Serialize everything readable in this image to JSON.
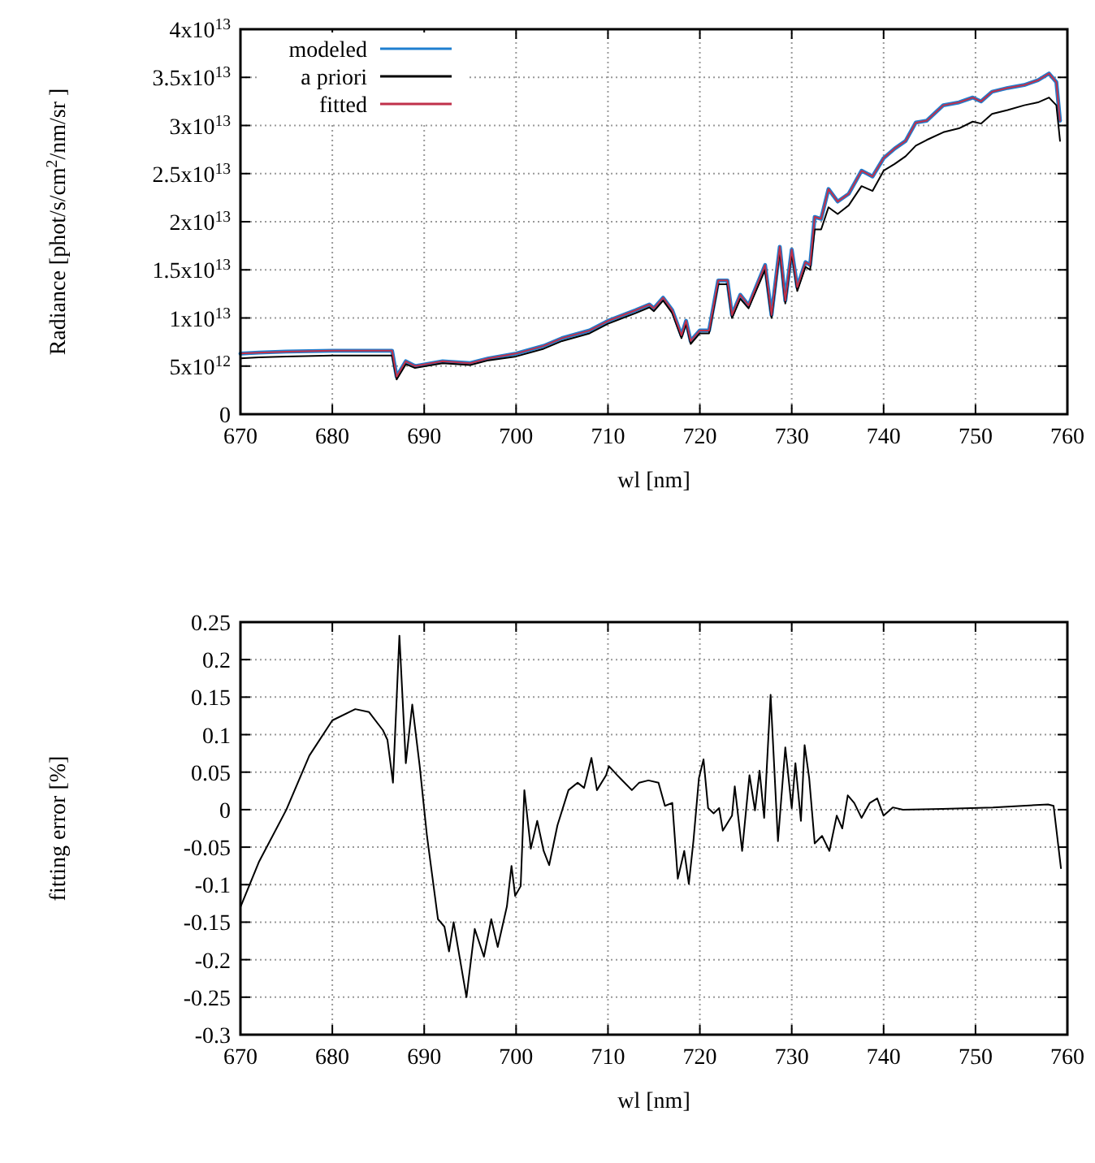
{
  "chart_data": [
    {
      "type": "line",
      "xlabel": "wl [nm]",
      "ylabel": "Radiance [phot/s/cm$^{2}$/nm/sr ]",
      "xlim": [
        670,
        760
      ],
      "ylim": [
        0,
        40000000000000.0
      ],
      "xticks": [
        670,
        680,
        690,
        700,
        710,
        720,
        730,
        740,
        750,
        760
      ],
      "yticks": [
        0,
        {
          "value": 5000000000000.0,
          "label": "5x10$^{12}$"
        },
        {
          "value": 10000000000000.0,
          "label": "1x10$^{13}$"
        },
        {
          "value": 15000000000000.0,
          "label": "1.5x10$^{13}$"
        },
        {
          "value": 20000000000000.0,
          "label": "2x10$^{13}$"
        },
        {
          "value": 25000000000000.0,
          "label": "2.5x10$^{13}$"
        },
        {
          "value": 30000000000000.0,
          "label": "3x10$^{13}$"
        },
        {
          "value": 35000000000000.0,
          "label": "3.5x10$^{13}$"
        },
        {
          "value": 40000000000000.0,
          "label": "4x10$^{13}$"
        }
      ],
      "grid": true,
      "legend": "top left",
      "line_style": "solid",
      "marker": "none",
      "x": [
        670,
        672,
        675,
        680,
        684,
        686.5,
        687,
        688,
        689,
        692,
        695,
        697,
        700,
        703,
        705,
        708,
        710,
        713,
        714.5,
        715,
        716,
        717,
        718,
        718.5,
        719,
        720,
        721,
        722,
        723,
        723.5,
        724.4,
        725.3,
        726.2,
        727.1,
        727.8,
        728.7,
        729.3,
        730,
        730.6,
        731.5,
        732,
        732.5,
        733.2,
        734,
        735,
        736.2,
        737.6,
        738.8,
        740,
        741.2,
        742.4,
        743.5,
        744.7,
        746.5,
        748.2,
        749.7,
        750.6,
        751.8,
        753.5,
        755.3,
        756.8,
        758,
        758.8,
        759.2
      ],
      "series": [
        {
          "name": "modeled",
          "color": "#1f7fd0",
          "values": [
            6300000000000.0,
            6400000000000.0,
            6500000000000.0,
            6600000000000.0,
            6600000000000.0,
            6600000000000.0,
            3900000000000.0,
            5500000000000.0,
            5000000000000.0,
            5500000000000.0,
            5300000000000.0,
            5800000000000.0,
            6300000000000.0,
            7100000000000.0,
            7900000000000.0,
            8700000000000.0,
            9700000000000.0,
            10800000000000.0,
            11400000000000.0,
            11000000000000.0,
            12100000000000.0,
            10800000000000.0,
            8200000000000.0,
            9700000000000.0,
            7600000000000.0,
            8700000000000.0,
            8700000000000.0,
            13900000000000.0,
            13900000000000.0,
            10300000000000.0,
            12400000000000.0,
            11300000000000.0,
            13400000000000.0,
            15500000000000.0,
            10300000000000.0,
            17400000000000.0,
            11800000000000.0,
            17100000000000.0,
            13200000000000.0,
            15800000000000.0,
            15500000000000.0,
            20500000000000.0,
            20300000000000.0,
            23400000000000.0,
            22100000000000.0,
            22900000000000.0,
            25300000000000.0,
            24700000000000.0,
            26600000000000.0,
            27600000000000.0,
            28400000000000.0,
            30300000000000.0,
            30500000000000.0,
            32100000000000.0,
            32400000000000.0,
            32900000000000.0,
            32500000000000.0,
            33500000000000.0,
            33900000000000.0,
            34200000000000.0,
            34700000000000.0,
            35400000000000.0,
            34500000000000.0,
            30500000000000.0
          ]
        },
        {
          "name": "a priori",
          "color": "#000000",
          "values": [
            5800000000000.0,
            5900000000000.0,
            6000000000000.0,
            6100000000000.0,
            6100000000000.0,
            6100000000000.0,
            3600000000000.0,
            5200000000000.0,
            4800000000000.0,
            5300000000000.0,
            5100000000000.0,
            5600000000000.0,
            6000000000000.0,
            6800000000000.0,
            7600000000000.0,
            8400000000000.0,
            9400000000000.0,
            10500000000000.0,
            11100000000000.0,
            10700000000000.0,
            11800000000000.0,
            10500000000000.0,
            7900000000000.0,
            9400000000000.0,
            7300000000000.0,
            8400000000000.0,
            8400000000000.0,
            13500000000000.0,
            13500000000000.0,
            10000000000000.0,
            12000000000000.0,
            11000000000000.0,
            13000000000000.0,
            15000000000000.0,
            10000000000000.0,
            17000000000000.0,
            11500000000000.0,
            16700000000000.0,
            12800000000000.0,
            15300000000000.0,
            15000000000000.0,
            19200000000000.0,
            19200000000000.0,
            21500000000000.0,
            20800000000000.0,
            21700000000000.0,
            23700000000000.0,
            23200000000000.0,
            25300000000000.0,
            26000000000000.0,
            26800000000000.0,
            27900000000000.0,
            28500000000000.0,
            29300000000000.0,
            29700000000000.0,
            30400000000000.0,
            30200000000000.0,
            31200000000000.0,
            31600000000000.0,
            32100000000000.0,
            32400000000000.0,
            32900000000000.0,
            32100000000000.0,
            28400000000000.0
          ]
        },
        {
          "name": "fitted",
          "color": "#c0304a",
          "values": [
            6300000000000.0,
            6400000000000.0,
            6500000000000.0,
            6600000000000.0,
            6600000000000.0,
            6600000000000.0,
            3900000000000.0,
            5500000000000.0,
            5000000000000.0,
            5500000000000.0,
            5300000000000.0,
            5800000000000.0,
            6300000000000.0,
            7100000000000.0,
            7900000000000.0,
            8700000000000.0,
            9700000000000.0,
            10800000000000.0,
            11400000000000.0,
            11000000000000.0,
            12100000000000.0,
            10800000000000.0,
            8200000000000.0,
            9700000000000.0,
            7600000000000.0,
            8700000000000.0,
            8700000000000.0,
            13900000000000.0,
            13900000000000.0,
            10300000000000.0,
            12400000000000.0,
            11300000000000.0,
            13400000000000.0,
            15500000000000.0,
            10300000000000.0,
            17400000000000.0,
            11800000000000.0,
            17100000000000.0,
            13200000000000.0,
            15800000000000.0,
            15500000000000.0,
            20500000000000.0,
            20300000000000.0,
            23400000000000.0,
            22100000000000.0,
            22900000000000.0,
            25300000000000.0,
            24700000000000.0,
            26600000000000.0,
            27600000000000.0,
            28400000000000.0,
            30300000000000.0,
            30500000000000.0,
            32100000000000.0,
            32400000000000.0,
            32900000000000.0,
            32500000000000.0,
            33500000000000.0,
            33900000000000.0,
            34200000000000.0,
            34700000000000.0,
            35400000000000.0,
            34500000000000.0,
            30500000000000.0
          ]
        }
      ]
    },
    {
      "type": "line",
      "xlabel": "wl [nm]",
      "ylabel": "fitting error [%]",
      "xlim": [
        670,
        760
      ],
      "ylim": [
        -0.3,
        0.25
      ],
      "xticks": [
        670,
        680,
        690,
        700,
        710,
        720,
        730,
        740,
        750,
        760
      ],
      "yticks": [
        -0.3,
        -0.25,
        -0.2,
        -0.15,
        -0.1,
        -0.05,
        0,
        0.05,
        0.1,
        0.15,
        0.2,
        0.25
      ],
      "grid": true,
      "line_style": "solid",
      "marker": "none",
      "x": [
        670,
        672,
        675,
        677.5,
        680,
        682.5,
        684,
        685.5,
        686,
        686.6,
        687.3,
        688,
        688.7,
        689.5,
        690.3,
        691.5,
        692.2,
        692.7,
        693.2,
        694.6,
        695.5,
        696.5,
        697.3,
        698,
        699,
        699.5,
        699.9,
        700.5,
        700.9,
        701.6,
        702.3,
        703,
        703.6,
        704.5,
        705.7,
        706.7,
        707.4,
        708.2,
        708.8,
        709.8,
        710.1,
        711,
        712.6,
        713.4,
        714.4,
        715.5,
        716.2,
        717,
        717.6,
        718.3,
        718.8,
        719.3,
        719.9,
        720.4,
        720.9,
        721.5,
        722.1,
        722.5,
        723.5,
        723.8,
        724.6,
        725.4,
        726,
        726.5,
        727,
        727.7,
        728.5,
        729.3,
        730,
        730.4,
        731,
        731.4,
        731.9,
        732.5,
        733.3,
        734.1,
        734.9,
        735.5,
        736.1,
        736.8,
        737.6,
        738.5,
        739.3,
        740,
        741,
        742.1,
        746.4,
        751.9,
        757.9,
        758.5,
        759.3
      ],
      "series": [
        {
          "color": "#000000",
          "values": [
            -0.13,
            -0.07,
            0.0,
            0.072,
            0.119,
            0.134,
            0.13,
            0.106,
            0.093,
            0.036,
            0.232,
            0.062,
            0.14,
            0.059,
            -0.035,
            -0.146,
            -0.156,
            -0.189,
            -0.15,
            -0.25,
            -0.159,
            -0.196,
            -0.146,
            -0.183,
            -0.129,
            -0.075,
            -0.115,
            -0.102,
            0.026,
            -0.052,
            -0.015,
            -0.055,
            -0.074,
            -0.021,
            0.026,
            0.036,
            0.029,
            0.069,
            0.026,
            0.046,
            0.058,
            0.046,
            0.026,
            0.036,
            0.039,
            0.036,
            0.005,
            0.009,
            -0.092,
            -0.055,
            -0.099,
            -0.042,
            0.042,
            0.067,
            0.002,
            -0.005,
            0.002,
            -0.028,
            -0.008,
            0.031,
            -0.055,
            0.046,
            -0.001,
            0.052,
            -0.011,
            0.153,
            -0.042,
            0.083,
            0.002,
            0.062,
            -0.015,
            0.086,
            0.042,
            -0.045,
            -0.035,
            -0.055,
            -0.008,
            -0.025,
            0.019,
            0.009,
            -0.011,
            0.009,
            0.015,
            -0.008,
            0.003,
            0.0,
            0.001,
            0.003,
            0.007,
            0.005,
            -0.078
          ]
        }
      ]
    }
  ]
}
